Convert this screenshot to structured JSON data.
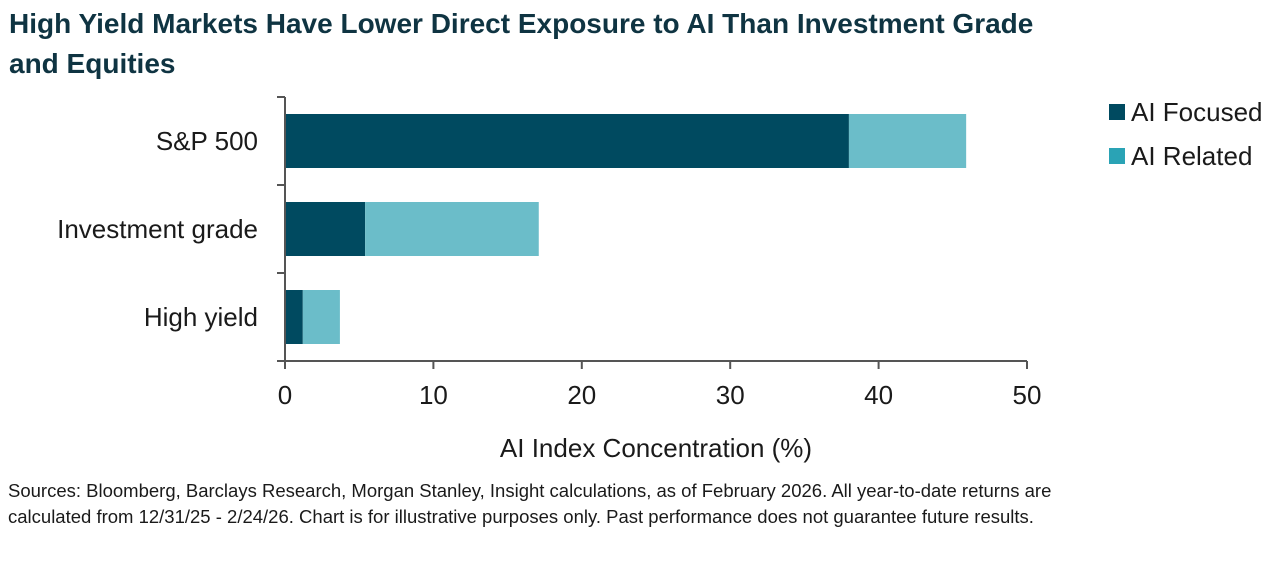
{
  "title": "High Yield Markets Have Lower Direct Exposure to AI Than Investment Grade and Equities",
  "source_note": "Sources: Bloomberg, Barclays Research, Morgan Stanley, Insight calculations, as of February 2026. All year-to-date returns are calculated from 12/31/25 - 2/24/26. Chart is for illustrative purposes only. Past performance does not guarantee future results.",
  "chart_data": {
    "type": "bar",
    "orientation": "horizontal",
    "stacked": true,
    "categories": [
      "S&P 500",
      "Investment grade",
      "High yield"
    ],
    "series": [
      {
        "name": "AI Focused",
        "values": [
          38.0,
          5.4,
          1.2
        ],
        "color": "#004a60"
      },
      {
        "name": "AI Related",
        "values": [
          7.9,
          11.7,
          2.5
        ],
        "color": "#6bbdc9"
      }
    ],
    "xlabel": "AI Index Concentration (%)",
    "ylabel": "",
    "xlim": [
      0,
      50
    ],
    "xticks": [
      "0",
      "10",
      "20",
      "30",
      "40",
      "50"
    ],
    "grid": false,
    "legend_position": "top-right"
  }
}
